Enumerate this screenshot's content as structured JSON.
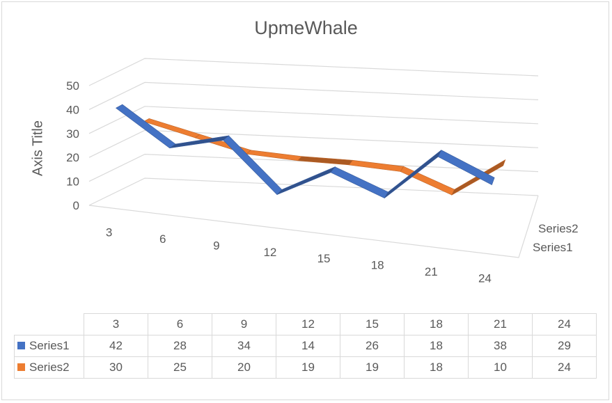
{
  "chart_data": {
    "type": "line",
    "title": "UpmeWhale",
    "ylabel": "Axis Title",
    "xlabel": "",
    "categories": [
      "3",
      "6",
      "9",
      "12",
      "15",
      "18",
      "21",
      "24"
    ],
    "ylim": [
      0,
      50
    ],
    "yticks": [
      "0",
      "10",
      "20",
      "30",
      "40",
      "50"
    ],
    "series": [
      {
        "name": "Series1",
        "values": [
          42,
          28,
          34,
          14,
          26,
          18,
          38,
          29
        ],
        "color": "#4472c4"
      },
      {
        "name": "Series2",
        "values": [
          30,
          25,
          20,
          19,
          19,
          18,
          10,
          24
        ],
        "color": "#ed7d31"
      }
    ],
    "depth_labels": [
      "Series2",
      "Series1"
    ],
    "grid": true,
    "style": "3d-line",
    "data_table": true
  }
}
